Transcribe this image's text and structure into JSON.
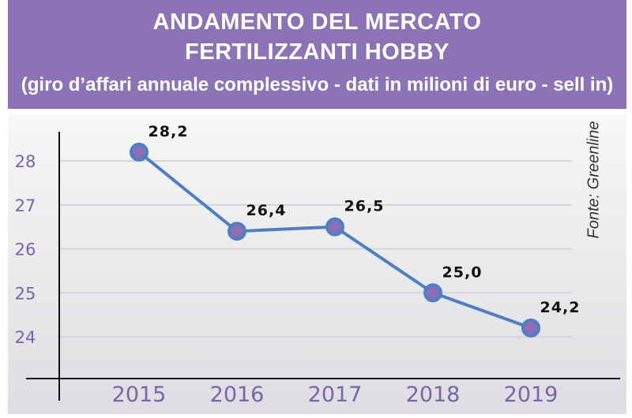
{
  "header": {
    "title_line1": "ANDAMENTO DEL MERCATO",
    "title_line2": "FERTILIZZANTI HOBBY",
    "subtitle": "(giro d’affari annuale complessivo - dati in milioni di euro - sell in)"
  },
  "source": "Fonte: Greenline",
  "colors": {
    "header": "#8b73b5",
    "line": "#4f7fc0",
    "marker_fill": "#8a6fb8",
    "tick_text": "#7a65a8"
  },
  "chart_data": {
    "type": "line",
    "title": "ANDAMENTO DEL MERCATO FERTILIZZANTI HOBBY",
    "categories": [
      "2015",
      "2016",
      "2017",
      "2018",
      "2019"
    ],
    "values": [
      28.2,
      26.4,
      26.5,
      25.0,
      24.2
    ],
    "data_labels": [
      "28,2",
      "26,4",
      "26,5",
      "25,0",
      "24,2"
    ],
    "yticks": [
      24,
      25,
      26,
      27,
      28
    ],
    "ylim": [
      22.6,
      28.7
    ],
    "grid": true,
    "xlabel": "",
    "ylabel": ""
  }
}
